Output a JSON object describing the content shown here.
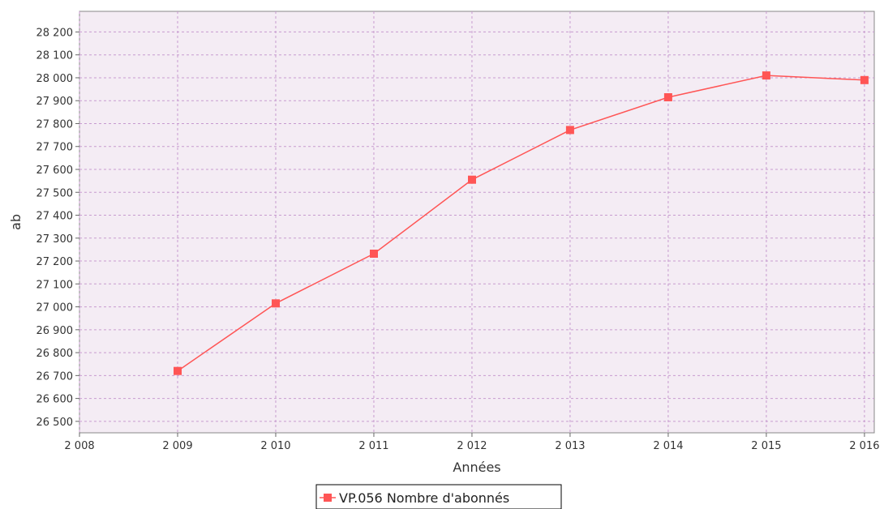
{
  "chart_data": {
    "type": "line",
    "title": "",
    "xlabel": "Années",
    "ylabel": "ab",
    "x_ticks": [
      "2 008",
      "2 009",
      "2 010",
      "2 011",
      "2 012",
      "2 013",
      "2 014",
      "2 015",
      "2 016"
    ],
    "x_tick_values": [
      2008,
      2009,
      2010,
      2011,
      2012,
      2013,
      2014,
      2015,
      2016
    ],
    "y_ticks": [
      "26 500",
      "26 600",
      "26 700",
      "26 800",
      "26 900",
      "27 000",
      "27 100",
      "27 200",
      "27 300",
      "27 400",
      "27 500",
      "27 600",
      "27 700",
      "27 800",
      "27 900",
      "28 000",
      "28 100",
      "28 200"
    ],
    "y_tick_values": [
      26500,
      26600,
      26700,
      26800,
      26900,
      27000,
      27100,
      27200,
      27300,
      27400,
      27500,
      27600,
      27700,
      27800,
      27900,
      28000,
      28100,
      28200
    ],
    "xlim": [
      2008,
      2016.1
    ],
    "ylim": [
      26450,
      28290
    ],
    "grid": true,
    "legend_position": "bottom-center",
    "x": [
      2009,
      2010,
      2011,
      2012,
      2013,
      2014,
      2015,
      2016
    ],
    "series": [
      {
        "name": "VP.056 Nombre d'abonnés",
        "color": "#ff5555",
        "values": [
          26720,
          27015,
          27232,
          27555,
          27772,
          27915,
          28010,
          27990
        ]
      }
    ],
    "plot_background": "#f4ecf4",
    "grid_color": "#c79bcf"
  }
}
